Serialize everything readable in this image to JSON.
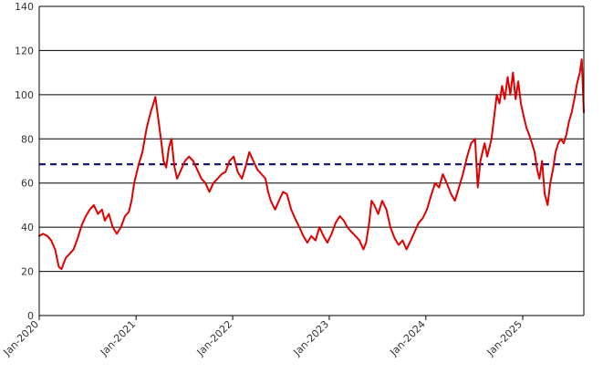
{
  "chart_data": {
    "type": "line",
    "title": "",
    "xlabel": "",
    "ylabel": "",
    "ylim": [
      0,
      140
    ],
    "yticks": [
      0,
      20,
      40,
      60,
      80,
      100,
      120,
      140
    ],
    "xlim": [
      "2020-01-01",
      "2025-08-20"
    ],
    "xticks": [
      {
        "date": "2020-01-01",
        "label": "Jan-2020"
      },
      {
        "date": "2021-01-01",
        "label": "Jan-2021"
      },
      {
        "date": "2022-01-01",
        "label": "Jan-2022"
      },
      {
        "date": "2023-01-01",
        "label": "Jan-2023"
      },
      {
        "date": "2024-01-01",
        "label": "Jan-2024"
      },
      {
        "date": "2025-01-01",
        "label": "Jan-2025"
      }
    ],
    "grid": "horizontal",
    "legend": "none",
    "reference_line": {
      "value": 68.5,
      "style": "dashed",
      "color": "#1a1a6e"
    },
    "series": [
      {
        "color": "#e00000",
        "points": [
          [
            "2020-01-01",
            36
          ],
          [
            "2020-01-15",
            37
          ],
          [
            "2020-02-01",
            36
          ],
          [
            "2020-02-15",
            34
          ],
          [
            "2020-03-01",
            30
          ],
          [
            "2020-03-15",
            22
          ],
          [
            "2020-03-25",
            21
          ],
          [
            "2020-04-10",
            26
          ],
          [
            "2020-04-25",
            28
          ],
          [
            "2020-05-10",
            30
          ],
          [
            "2020-05-25",
            35
          ],
          [
            "2020-06-10",
            41
          ],
          [
            "2020-06-25",
            45
          ],
          [
            "2020-07-10",
            48
          ],
          [
            "2020-07-25",
            50
          ],
          [
            "2020-08-10",
            46
          ],
          [
            "2020-08-25",
            48
          ],
          [
            "2020-09-05",
            43
          ],
          [
            "2020-09-20",
            46
          ],
          [
            "2020-10-05",
            40
          ],
          [
            "2020-10-20",
            37
          ],
          [
            "2020-11-05",
            40
          ],
          [
            "2020-11-20",
            45
          ],
          [
            "2020-12-05",
            47
          ],
          [
            "2020-12-15",
            52
          ],
          [
            "2020-12-25",
            60
          ],
          [
            "2021-01-10",
            68
          ],
          [
            "2021-01-25",
            74
          ],
          [
            "2021-02-10",
            85
          ],
          [
            "2021-02-25",
            92
          ],
          [
            "2021-03-05",
            95
          ],
          [
            "2021-03-15",
            99
          ],
          [
            "2021-03-25",
            90
          ],
          [
            "2021-04-05",
            80
          ],
          [
            "2021-04-15",
            70
          ],
          [
            "2021-04-25",
            67
          ],
          [
            "2021-05-05",
            76
          ],
          [
            "2021-05-15",
            80
          ],
          [
            "2021-05-25",
            68
          ],
          [
            "2021-06-05",
            62
          ],
          [
            "2021-06-20",
            66
          ],
          [
            "2021-07-05",
            70
          ],
          [
            "2021-07-20",
            72
          ],
          [
            "2021-08-05",
            70
          ],
          [
            "2021-08-20",
            66
          ],
          [
            "2021-09-05",
            62
          ],
          [
            "2021-09-20",
            60
          ],
          [
            "2021-10-05",
            56
          ],
          [
            "2021-10-20",
            60
          ],
          [
            "2021-11-05",
            62
          ],
          [
            "2021-11-20",
            64
          ],
          [
            "2021-12-05",
            65
          ],
          [
            "2021-12-20",
            70
          ],
          [
            "2022-01-05",
            72
          ],
          [
            "2022-01-20",
            65
          ],
          [
            "2022-02-05",
            62
          ],
          [
            "2022-02-20",
            68
          ],
          [
            "2022-03-05",
            74
          ],
          [
            "2022-03-20",
            70
          ],
          [
            "2022-04-05",
            66
          ],
          [
            "2022-04-20",
            64
          ],
          [
            "2022-05-05",
            62
          ],
          [
            "2022-05-15",
            56
          ],
          [
            "2022-05-25",
            52
          ],
          [
            "2022-06-10",
            48
          ],
          [
            "2022-06-25",
            52
          ],
          [
            "2022-07-10",
            56
          ],
          [
            "2022-07-25",
            55
          ],
          [
            "2022-08-10",
            48
          ],
          [
            "2022-08-25",
            44
          ],
          [
            "2022-09-10",
            40
          ],
          [
            "2022-09-25",
            36
          ],
          [
            "2022-10-10",
            33
          ],
          [
            "2022-10-25",
            36
          ],
          [
            "2022-11-10",
            34
          ],
          [
            "2022-11-25",
            40
          ],
          [
            "2022-12-10",
            36
          ],
          [
            "2022-12-25",
            33
          ],
          [
            "2023-01-10",
            37
          ],
          [
            "2023-01-25",
            42
          ],
          [
            "2023-02-10",
            45
          ],
          [
            "2023-02-25",
            43
          ],
          [
            "2023-03-10",
            40
          ],
          [
            "2023-03-25",
            38
          ],
          [
            "2023-04-10",
            36
          ],
          [
            "2023-04-25",
            34
          ],
          [
            "2023-05-10",
            30
          ],
          [
            "2023-05-20",
            33
          ],
          [
            "2023-06-01",
            42
          ],
          [
            "2023-06-10",
            52
          ],
          [
            "2023-06-20",
            50
          ],
          [
            "2023-07-05",
            46
          ],
          [
            "2023-07-20",
            52
          ],
          [
            "2023-08-05",
            48
          ],
          [
            "2023-08-20",
            40
          ],
          [
            "2023-09-05",
            35
          ],
          [
            "2023-09-20",
            32
          ],
          [
            "2023-10-05",
            34
          ],
          [
            "2023-10-20",
            30
          ],
          [
            "2023-11-05",
            34
          ],
          [
            "2023-11-20",
            38
          ],
          [
            "2023-12-05",
            42
          ],
          [
            "2023-12-20",
            44
          ],
          [
            "2024-01-05",
            48
          ],
          [
            "2024-01-20",
            54
          ],
          [
            "2024-02-05",
            60
          ],
          [
            "2024-02-20",
            58
          ],
          [
            "2024-03-05",
            64
          ],
          [
            "2024-03-20",
            60
          ],
          [
            "2024-04-05",
            55
          ],
          [
            "2024-04-20",
            52
          ],
          [
            "2024-05-05",
            58
          ],
          [
            "2024-05-20",
            64
          ],
          [
            "2024-06-05",
            72
          ],
          [
            "2024-06-20",
            78
          ],
          [
            "2024-07-05",
            80
          ],
          [
            "2024-07-15",
            58
          ],
          [
            "2024-07-25",
            70
          ],
          [
            "2024-08-10",
            78
          ],
          [
            "2024-08-20",
            72
          ],
          [
            "2024-09-05",
            80
          ],
          [
            "2024-09-15",
            90
          ],
          [
            "2024-09-25",
            100
          ],
          [
            "2024-10-05",
            96
          ],
          [
            "2024-10-15",
            104
          ],
          [
            "2024-10-25",
            98
          ],
          [
            "2024-11-05",
            108
          ],
          [
            "2024-11-15",
            100
          ],
          [
            "2024-11-25",
            110
          ],
          [
            "2024-12-05",
            98
          ],
          [
            "2024-12-15",
            106
          ],
          [
            "2024-12-25",
            96
          ],
          [
            "2025-01-05",
            90
          ],
          [
            "2025-01-15",
            85
          ],
          [
            "2025-01-25",
            82
          ],
          [
            "2025-02-05",
            78
          ],
          [
            "2025-02-15",
            74
          ],
          [
            "2025-02-25",
            66
          ],
          [
            "2025-03-05",
            62
          ],
          [
            "2025-03-15",
            70
          ],
          [
            "2025-03-25",
            55
          ],
          [
            "2025-04-05",
            50
          ],
          [
            "2025-04-15",
            60
          ],
          [
            "2025-04-25",
            66
          ],
          [
            "2025-05-05",
            74
          ],
          [
            "2025-05-15",
            78
          ],
          [
            "2025-05-25",
            80
          ],
          [
            "2025-06-05",
            78
          ],
          [
            "2025-06-15",
            82
          ],
          [
            "2025-06-25",
            88
          ],
          [
            "2025-07-05",
            92
          ],
          [
            "2025-07-15",
            98
          ],
          [
            "2025-07-25",
            105
          ],
          [
            "2025-08-05",
            110
          ],
          [
            "2025-08-12",
            116
          ],
          [
            "2025-08-20",
            92
          ]
        ]
      }
    ]
  }
}
